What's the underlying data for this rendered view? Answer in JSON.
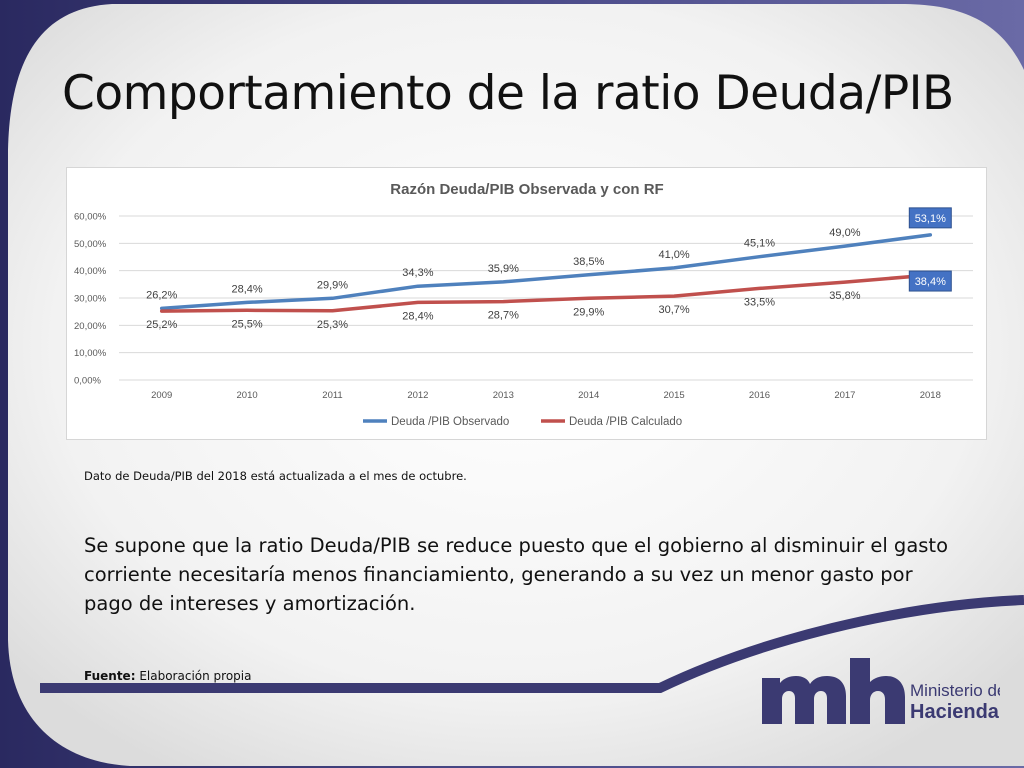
{
  "slide": {
    "title": "Comportamiento de la ratio Deuda/PIB",
    "note": "Dato de Deuda/PIB del 2018 está actualizada a el mes de octubre.",
    "body": "Se supone que la ratio Deuda/PIB se reduce puesto que el gobierno al disminuir el gasto corriente necesitaría menos financiamiento, generando a su vez un menor gasto por pago de intereses y amortización.",
    "source_label": "Fuente:",
    "source_value": "Elaboración propia",
    "logo": {
      "line1": "Ministerio de",
      "line2": "Hacienda",
      "icon": "mh-monogram-logo"
    },
    "colors": {
      "frame": "#3b3a72",
      "band": "#3b3a72",
      "observado": "#4f81bd",
      "calculado": "#c0504d"
    }
  },
  "chart_data": {
    "type": "line",
    "title": "Razón Deuda/PIB Observada y con RF",
    "categories": [
      "2009",
      "2010",
      "2011",
      "2012",
      "2013",
      "2014",
      "2015",
      "2016",
      "2017",
      "2018"
    ],
    "series": [
      {
        "name": "Deuda /PIB Observado",
        "color": "#4f81bd",
        "values": [
          26.2,
          28.4,
          29.9,
          34.3,
          35.9,
          38.5,
          41.0,
          45.1,
          49.0,
          53.1
        ],
        "labels": [
          "26,2%",
          "28,4%",
          "29,9%",
          "34,3%",
          "35,9%",
          "38,5%",
          "41,0%",
          "45,1%",
          "49,0%",
          "53,1%"
        ]
      },
      {
        "name": "Deuda /PIB Calculado",
        "color": "#c0504d",
        "values": [
          25.2,
          25.5,
          25.3,
          28.4,
          28.7,
          29.9,
          30.7,
          33.5,
          35.8,
          38.4
        ],
        "labels": [
          "25,2%",
          "25,5%",
          "25,3%",
          "28,4%",
          "28,7%",
          "29,9%",
          "30,7%",
          "33,5%",
          "35,8%",
          "38,4%"
        ]
      }
    ],
    "ylim": [
      0,
      60
    ],
    "yticks": [
      0,
      10,
      20,
      30,
      40,
      50,
      60
    ],
    "ytick_labels": [
      "0,00%",
      "10,00%",
      "20,00%",
      "30,00%",
      "40,00%",
      "50,00%",
      "60,00%"
    ],
    "grid": true,
    "legend": "bottom",
    "highlighted_last_labels": true
  }
}
